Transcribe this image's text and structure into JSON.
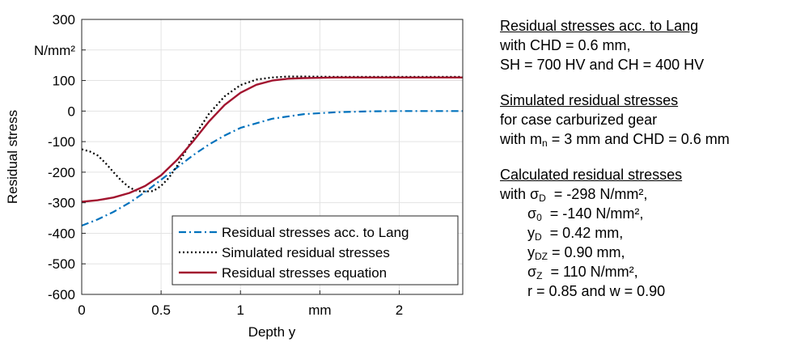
{
  "chart_data": {
    "type": "line",
    "xlabel": "Depth y",
    "ylabel": "Residual stress",
    "xlim": [
      0,
      2.4
    ],
    "ylim": [
      -600,
      300
    ],
    "x_ticks": [
      {
        "value": 0,
        "label": "0"
      },
      {
        "value": 0.5,
        "label": "0.5"
      },
      {
        "value": 1,
        "label": "1"
      },
      {
        "value": 1.5,
        "label": "mm"
      },
      {
        "value": 2,
        "label": "2"
      }
    ],
    "y_ticks": [
      {
        "value": 300,
        "label": "300"
      },
      {
        "value": 200,
        "label": "N/mm²"
      },
      {
        "value": 100,
        "label": "100"
      },
      {
        "value": 0,
        "label": "0"
      },
      {
        "value": -100,
        "label": "-100"
      },
      {
        "value": -200,
        "label": "-200"
      },
      {
        "value": -300,
        "label": "-300"
      },
      {
        "value": -400,
        "label": "-400"
      },
      {
        "value": -500,
        "label": "-500"
      },
      {
        "value": -600,
        "label": "-600"
      }
    ],
    "grid": true,
    "legend_position": "bottom-right",
    "series": [
      {
        "name": "Residual stresses acc. to Lang",
        "color": "#0072bd",
        "style": "dash-dot",
        "x": [
          0,
          0.1,
          0.2,
          0.3,
          0.4,
          0.5,
          0.6,
          0.7,
          0.8,
          0.9,
          1.0,
          1.2,
          1.4,
          1.6,
          1.8,
          2.0,
          2.2,
          2.4
        ],
        "y": [
          -375,
          -355,
          -330,
          -300,
          -265,
          -225,
          -185,
          -145,
          -110,
          -80,
          -55,
          -25,
          -10,
          -4,
          -1,
          0,
          0,
          0
        ]
      },
      {
        "name": "Simulated residual stresses",
        "color": "#000000",
        "style": "dotted",
        "x": [
          0,
          0.05,
          0.1,
          0.15,
          0.2,
          0.25,
          0.3,
          0.35,
          0.4,
          0.45,
          0.5,
          0.55,
          0.6,
          0.65,
          0.7,
          0.8,
          0.9,
          1.0,
          1.1,
          1.2,
          1.3,
          1.4,
          1.6,
          1.8,
          2.0,
          2.2,
          2.4
        ],
        "y": [
          -125,
          -132,
          -145,
          -170,
          -200,
          -228,
          -250,
          -262,
          -263,
          -262,
          -245,
          -218,
          -180,
          -135,
          -90,
          -10,
          48,
          85,
          103,
          110,
          113,
          113,
          112,
          112,
          112,
          112,
          112
        ]
      },
      {
        "name": "Residual stresses equation",
        "color": "#a2142f",
        "style": "solid",
        "x": [
          0,
          0.1,
          0.2,
          0.3,
          0.4,
          0.5,
          0.6,
          0.7,
          0.8,
          0.9,
          1.0,
          1.1,
          1.2,
          1.3,
          1.4,
          1.6,
          1.8,
          2.0,
          2.2,
          2.4
        ],
        "y": [
          -297,
          -292,
          -283,
          -268,
          -245,
          -210,
          -160,
          -100,
          -35,
          20,
          60,
          86,
          100,
          106,
          108,
          110,
          110,
          110,
          110,
          110
        ]
      }
    ]
  },
  "notes": {
    "lang": {
      "title": "Residual stresses acc. to Lang",
      "line1": "with CHD = 0.6 mm,",
      "line2": "SH = 700 HV and CH = 400 HV"
    },
    "sim": {
      "title": "Simulated residual stresses",
      "line1": "for case carburized gear",
      "line2_pre": "with m",
      "line2_sub": "n",
      "line2_post": " = 3 mm and CHD = 0.6 mm"
    },
    "calc": {
      "title": "Calculated residual stresses",
      "r1_pre": "with σ",
      "r1_sub": "D",
      "r1_post": "  = -298 N/mm²,",
      "r2_pre": "σ",
      "r2_sub": "0",
      "r2_post": "  = -140 N/mm²,",
      "r3_pre": "y",
      "r3_sub": "D",
      "r3_post": "  = 0.42 mm,",
      "r4_pre": "y",
      "r4_sub": "DZ",
      "r4_post": " = 0.90 mm,",
      "r5_pre": "σ",
      "r5_sub": "Z",
      "r5_post": "  = 110 N/mm²,",
      "r6": "r = 0.85 and w = 0.90"
    }
  }
}
